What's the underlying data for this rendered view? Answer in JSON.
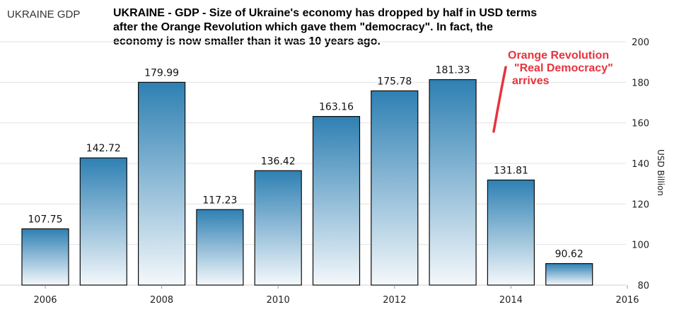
{
  "source_title": "UKRAINE GDP",
  "headline": [
    "UKRAINE - GDP - Size of Ukraine's economy has dropped by half in USD terms",
    "after the Orange Revolution which gave them \"democracy\". In fact, the",
    "economy is now smaller than it was 10 years ago."
  ],
  "annotation": [
    "Orange Revolution",
    "\"Real Democracy\"",
    "arrives"
  ],
  "colors": {
    "bar_top": "#2e80b3",
    "bar_bottom": "#f4f8fb",
    "bar_edge": "#0a0a0a",
    "annotation": "#e8323c",
    "grid": "#e3e3e3"
  },
  "chart_data": {
    "type": "bar",
    "categories": [
      "2006",
      "2007",
      "2008",
      "2009",
      "2010",
      "2011",
      "2012",
      "2013",
      "2014",
      "2015"
    ],
    "values": [
      107.75,
      142.72,
      179.99,
      117.23,
      136.42,
      163.16,
      175.78,
      181.33,
      131.81,
      90.62
    ],
    "data_labels": [
      "107.75",
      "142.72",
      "179.99",
      "117.23",
      "136.42",
      "163.16",
      "175.78",
      "181.33",
      "131.81",
      "90.62"
    ],
    "x_tick_labels": [
      "2006",
      "2008",
      "2010",
      "2012",
      "2014",
      "2016"
    ],
    "y_tick_labels": [
      "80",
      "100",
      "120",
      "140",
      "160",
      "180",
      "200"
    ],
    "ylabel": "USD Billion",
    "ylim": [
      80,
      200
    ],
    "y_axis_side": "right",
    "grid": true
  }
}
